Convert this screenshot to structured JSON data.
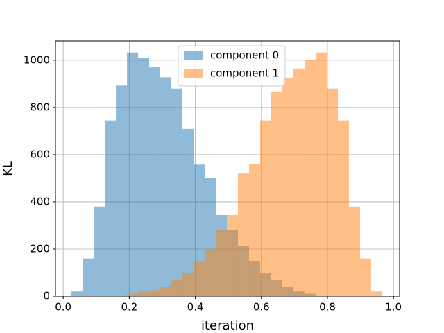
{
  "chart_data": {
    "type": "histogram",
    "xlabel": "iteration",
    "ylabel": "KL",
    "bins": [
      0.025,
      0.0586,
      0.0922,
      0.1258,
      0.1594,
      0.193,
      0.2266,
      0.2602,
      0.2938,
      0.3274,
      0.361,
      0.3946,
      0.4282,
      0.4618,
      0.4954,
      0.529,
      0.5626,
      0.5962,
      0.6298,
      0.6634,
      0.697,
      0.7306,
      0.7642,
      0.7978,
      0.8314,
      0.865,
      0.8986,
      0.9322,
      0.9658
    ],
    "series": [
      {
        "name": "component 0",
        "color": "#1f77b4",
        "values": [
          20,
          160,
          380,
          745,
          893,
          1033,
          1010,
          970,
          928,
          880,
          709,
          558,
          500,
          344,
          280,
          212,
          150,
          100,
          70,
          40,
          20,
          10,
          0,
          0,
          0,
          0,
          0,
          0
        ]
      },
      {
        "name": "component 1",
        "color": "#ff7f0e",
        "values": [
          0,
          0,
          0,
          0,
          0,
          10,
          20,
          25,
          40,
          70,
          100,
          150,
          195,
          280,
          344,
          520,
          560,
          745,
          865,
          925,
          965,
          1000,
          1033,
          880,
          745,
          380,
          160,
          20
        ]
      }
    ],
    "opacity": 0.5,
    "xlim": [
      -0.0235,
      1.0185
    ],
    "ylim": [
      0,
      1082
    ],
    "xticks": [
      {
        "value": 0,
        "label": "0.0"
      },
      0.2,
      0.4,
      0.6,
      0.8,
      {
        "value": 1,
        "label": "1.0"
      }
    ],
    "yticks": [
      0,
      200,
      400,
      600,
      800,
      1000
    ],
    "grid": true,
    "legend": "upper center"
  }
}
